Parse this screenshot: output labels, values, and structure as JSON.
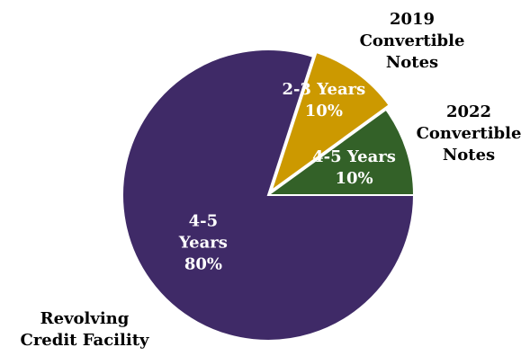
{
  "chart_data": {
    "type": "pie",
    "title": "",
    "slices": [
      {
        "name": "2019 Convertible Notes",
        "outer_label_lines": [
          "2019",
          "Convertible",
          "Notes"
        ],
        "value": 10,
        "inner_label_lines": [
          "2-3 Years",
          "10%"
        ],
        "color": "#CC9900",
        "exploded": true
      },
      {
        "name": "2022 Convertible Notes",
        "outer_label_lines": [
          "2022",
          "Convertible",
          "Notes"
        ],
        "value": 10,
        "inner_label_lines": [
          "4-5 Years",
          "10%"
        ],
        "color": "#336128",
        "exploded": false
      },
      {
        "name": "Revolving Credit Facility",
        "outer_label_lines": [
          "Revolving",
          "Credit Facility"
        ],
        "value": 80,
        "inner_label_lines": [
          "4-5",
          "Years",
          "80%"
        ],
        "color": "#3F2A67",
        "exploded": false
      }
    ],
    "units": "%",
    "legend": "none",
    "slice_border_color": "#ffffff"
  }
}
